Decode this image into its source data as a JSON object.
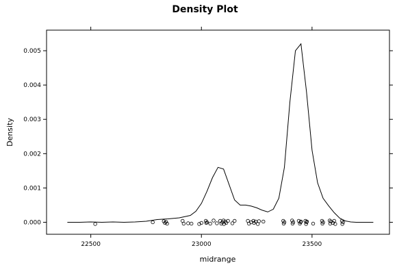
{
  "chart_data": {
    "type": "line",
    "title": "Density Plot",
    "xlabel": "midrange",
    "ylabel": "Density",
    "xlim": [
      22300,
      23850
    ],
    "ylim": [
      -0.00035,
      0.0056
    ],
    "x_ticks": [
      22500,
      23000,
      23500
    ],
    "x_tick_labels": [
      "22500",
      "23000",
      "23500"
    ],
    "y_ticks": [
      0.0,
      0.001,
      0.002,
      0.003,
      0.004,
      0.005
    ],
    "y_tick_labels": [
      "0.000",
      "0.001",
      "0.002",
      "0.003",
      "0.004",
      "0.005"
    ],
    "grid": false,
    "series": [
      {
        "values_x": [
          22394,
          22450,
          22500,
          22550,
          22600,
          22650,
          22700,
          22750,
          22800,
          22850,
          22900,
          22950,
          22975,
          23000,
          23025,
          23050,
          23075,
          23100,
          23125,
          23150,
          23175,
          23200,
          23225,
          23250,
          23275,
          23300,
          23325,
          23350,
          23375,
          23400,
          23425,
          23450,
          23475,
          23500,
          23525,
          23550,
          23575,
          23600,
          23625,
          23650,
          23675,
          23700,
          23725,
          23750,
          23777
        ],
        "values_y": [
          0.0,
          0.0,
          1e-05,
          0.0,
          1e-05,
          0.0,
          1e-05,
          3e-05,
          8e-05,
          0.0001,
          0.00013,
          0.0002,
          0.00032,
          0.00055,
          0.0009,
          0.0013,
          0.0016,
          0.00155,
          0.0011,
          0.00065,
          0.0005,
          0.0005,
          0.00047,
          0.00042,
          0.00035,
          0.0003,
          0.00038,
          0.0007,
          0.0016,
          0.0035,
          0.005,
          0.0052,
          0.0038,
          0.0021,
          0.00115,
          0.0007,
          0.00048,
          0.00028,
          0.00012,
          4e-05,
          1e-05,
          0.0,
          0.0,
          0.0,
          0.0
        ]
      }
    ],
    "rug_points": [
      {
        "x": 22520,
        "y": -5e-05
      },
      {
        "x": 22780,
        "y": 0.0
      },
      {
        "x": 22830,
        "y": 3e-05
      },
      {
        "x": 22835,
        "y": -2e-05
      },
      {
        "x": 22840,
        "y": 1e-05
      },
      {
        "x": 22845,
        "y": -4e-05
      },
      {
        "x": 22915,
        "y": 4e-05
      },
      {
        "x": 22920,
        "y": -4e-05
      },
      {
        "x": 22940,
        "y": -3e-05
      },
      {
        "x": 22955,
        "y": -4e-05
      },
      {
        "x": 22990,
        "y": -5e-05
      },
      {
        "x": 23000,
        "y": -2e-05
      },
      {
        "x": 23020,
        "y": 4e-05
      },
      {
        "x": 23022,
        "y": -2e-05
      },
      {
        "x": 23025,
        "y": 0.0
      },
      {
        "x": 23040,
        "y": -4e-05
      },
      {
        "x": 23055,
        "y": 5e-05
      },
      {
        "x": 23070,
        "y": -3e-05
      },
      {
        "x": 23085,
        "y": 4e-05
      },
      {
        "x": 23090,
        "y": -4e-05
      },
      {
        "x": 23095,
        "y": 0.0
      },
      {
        "x": 23100,
        "y": 5e-05
      },
      {
        "x": 23102,
        "y": -5e-05
      },
      {
        "x": 23108,
        "y": 2e-05
      },
      {
        "x": 23112,
        "y": -2e-05
      },
      {
        "x": 23120,
        "y": 4e-05
      },
      {
        "x": 23140,
        "y": -3e-05
      },
      {
        "x": 23150,
        "y": 4e-05
      },
      {
        "x": 23210,
        "y": 4e-05
      },
      {
        "x": 23215,
        "y": -4e-05
      },
      {
        "x": 23225,
        "y": 0.0
      },
      {
        "x": 23235,
        "y": 4e-05
      },
      {
        "x": 23238,
        "y": -2e-05
      },
      {
        "x": 23245,
        "y": 2e-05
      },
      {
        "x": 23255,
        "y": -5e-05
      },
      {
        "x": 23260,
        "y": 3e-05
      },
      {
        "x": 23280,
        "y": 2e-05
      },
      {
        "x": 23370,
        "y": 4e-05
      },
      {
        "x": 23372,
        "y": -4e-05
      },
      {
        "x": 23375,
        "y": 0.0
      },
      {
        "x": 23410,
        "y": 5e-05
      },
      {
        "x": 23412,
        "y": -4e-05
      },
      {
        "x": 23415,
        "y": 0.0
      },
      {
        "x": 23440,
        "y": 4e-05
      },
      {
        "x": 23445,
        "y": -4e-05
      },
      {
        "x": 23448,
        "y": 0.0
      },
      {
        "x": 23450,
        "y": 2e-05
      },
      {
        "x": 23470,
        "y": 4e-05
      },
      {
        "x": 23473,
        "y": -5e-05
      },
      {
        "x": 23475,
        "y": 0.0
      },
      {
        "x": 23477,
        "y": 2e-05
      },
      {
        "x": 23505,
        "y": -4e-05
      },
      {
        "x": 23545,
        "y": 4e-05
      },
      {
        "x": 23547,
        "y": -4e-05
      },
      {
        "x": 23550,
        "y": 0.0
      },
      {
        "x": 23580,
        "y": 5e-05
      },
      {
        "x": 23582,
        "y": -4e-05
      },
      {
        "x": 23585,
        "y": 2e-05
      },
      {
        "x": 23595,
        "y": -2e-05
      },
      {
        "x": 23600,
        "y": 4e-05
      },
      {
        "x": 23605,
        "y": -5e-05
      },
      {
        "x": 23635,
        "y": 4e-05
      },
      {
        "x": 23637,
        "y": -5e-05
      },
      {
        "x": 23640,
        "y": 0.0
      }
    ]
  }
}
